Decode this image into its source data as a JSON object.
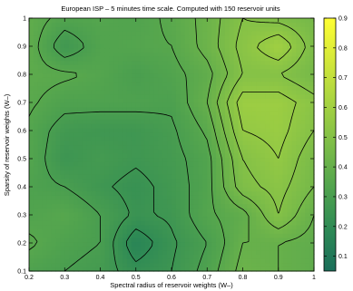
{
  "chart_data": {
    "type": "heatmap",
    "title": "European ISP – 5 minutes time scale. Computed with 150 reservoir units",
    "xlabel": "Spectral radius of reservoir weights  (W–)",
    "ylabel": "Sparsity of reservoir weights (W–)",
    "xlim": [
      0.2,
      1.0
    ],
    "ylim": [
      0.1,
      1.0
    ],
    "x_ticks": [
      "0.2",
      "0.3",
      "0.4",
      "0.5",
      "0.6",
      "0.7",
      "0.8",
      "0.9",
      "1"
    ],
    "y_ticks": [
      "0.1",
      "0.2",
      "0.3",
      "0.4",
      "0.5",
      "0.6",
      "0.7",
      "0.8",
      "0.9",
      "1"
    ],
    "colorbar": {
      "range": [
        0.05,
        0.9
      ],
      "ticks": [
        "0.1",
        "0.2",
        "0.3",
        "0.4",
        "0.5",
        "0.6",
        "0.7",
        "0.8",
        "0.9"
      ],
      "colors": [
        "#1a6e5a",
        "#2e8a55",
        "#52a44e",
        "#7dbd48",
        "#a7d341",
        "#d4e83a",
        "#ffff33"
      ]
    },
    "x": [
      0.2,
      0.3,
      0.4,
      0.5,
      0.6,
      0.7,
      0.8,
      0.9,
      1.0
    ],
    "y": [
      0.1,
      0.2,
      0.3,
      0.4,
      0.5,
      0.6,
      0.7,
      0.8,
      0.9,
      1.0
    ],
    "z": [
      [
        0.32,
        0.3,
        0.28,
        0.22,
        0.25,
        0.32,
        0.42,
        0.4,
        0.38
      ],
      [
        0.36,
        0.32,
        0.3,
        0.16,
        0.24,
        0.3,
        0.4,
        0.4,
        0.38
      ],
      [
        0.33,
        0.35,
        0.3,
        0.24,
        0.26,
        0.34,
        0.38,
        0.5,
        0.4
      ],
      [
        0.32,
        0.3,
        0.26,
        0.23,
        0.27,
        0.33,
        0.48,
        0.52,
        0.45
      ],
      [
        0.34,
        0.25,
        0.28,
        0.26,
        0.28,
        0.33,
        0.5,
        0.55,
        0.46
      ],
      [
        0.34,
        0.27,
        0.26,
        0.26,
        0.29,
        0.36,
        0.55,
        0.57,
        0.5
      ],
      [
        0.36,
        0.32,
        0.32,
        0.32,
        0.31,
        0.4,
        0.58,
        0.58,
        0.52
      ],
      [
        0.37,
        0.36,
        0.34,
        0.3,
        0.33,
        0.38,
        0.5,
        0.5,
        0.45
      ],
      [
        0.38,
        0.26,
        0.33,
        0.34,
        0.35,
        0.42,
        0.52,
        0.6,
        0.47
      ],
      [
        0.38,
        0.33,
        0.34,
        0.33,
        0.36,
        0.42,
        0.5,
        0.48,
        0.45
      ]
    ],
    "contour_levels": [
      0.15,
      0.2,
      0.25,
      0.3,
      0.35,
      0.4,
      0.45,
      0.5,
      0.55,
      0.6
    ],
    "grid": false,
    "legend": "colorbar-right"
  }
}
